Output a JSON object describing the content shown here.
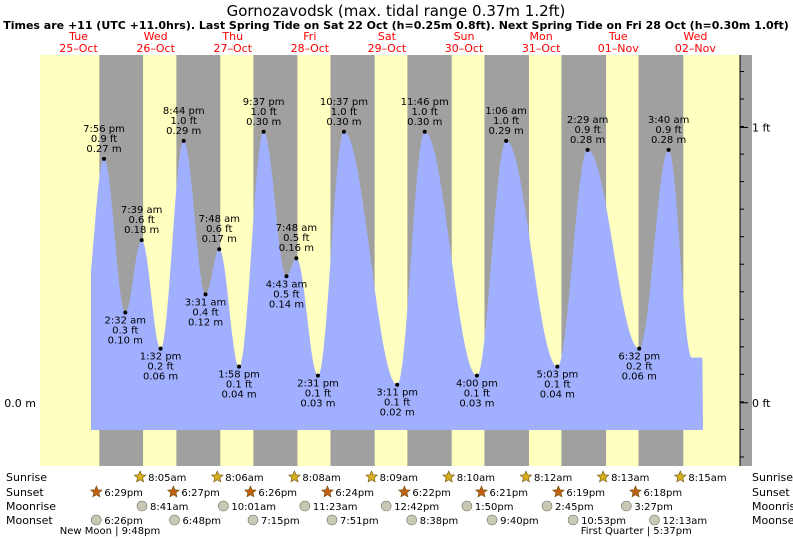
{
  "title": "Gornozavodsk (max. tidal range 0.37m 1.2ft)",
  "subtitle": "Times are +11 (UTC +11.0hrs). Last Spring Tide on Sat 22 Oct (h=0.25m 0.8ft). Next Spring Tide on Fri 28 Oct (h=0.30m 1.0ft)",
  "colors": {
    "day": "#ffffc0",
    "night": "#a0a0a0",
    "water": "#a0b0ff",
    "day_label": "#ff0000",
    "sun_star": "#d4b020",
    "set_star": "#c06010",
    "moon_disc": "#c8c8b4"
  },
  "chart_data": {
    "type": "area",
    "days": [
      {
        "dow": "Tue",
        "date": "25–Oct"
      },
      {
        "dow": "Wed",
        "date": "26–Oct"
      },
      {
        "dow": "Thu",
        "date": "27–Oct"
      },
      {
        "dow": "Fri",
        "date": "28–Oct"
      },
      {
        "dow": "Sat",
        "date": "29–Oct"
      },
      {
        "dow": "Sun",
        "date": "30–Oct"
      },
      {
        "dow": "Mon",
        "date": "31–Oct"
      },
      {
        "dow": "Tue",
        "date": "01–Nov"
      },
      {
        "dow": "Wed",
        "date": "02–Nov"
      }
    ],
    "left_axis": {
      "label": "0.0 m",
      "value_m": 0.0
    },
    "right_axis": [
      {
        "label": "1 ft",
        "value_ft": 1.0
      },
      {
        "label": "0 ft",
        "value_ft": 0.0
      }
    ],
    "ylim_m": [
      -0.07,
      0.385
    ],
    "tides": [
      {
        "time": "7:56 pm",
        "ft": "0.9 ft",
        "m": "0.27 m",
        "t": 0.83,
        "h": 0.27,
        "type": "high"
      },
      {
        "time": "2:32 am",
        "ft": "0.3 ft",
        "m": "0.10 m",
        "t": 1.106,
        "h": 0.1,
        "type": "low"
      },
      {
        "time": "7:39 am",
        "ft": "0.6 ft",
        "m": "0.18 m",
        "t": 1.319,
        "h": 0.18,
        "type": "high"
      },
      {
        "time": "1:32 pm",
        "ft": "0.2 ft",
        "m": "0.06 m",
        "t": 1.564,
        "h": 0.06,
        "type": "low"
      },
      {
        "time": "8:44 pm",
        "ft": "1.0 ft",
        "m": "0.29 m",
        "t": 1.864,
        "h": 0.29,
        "type": "high"
      },
      {
        "time": "3:31 am",
        "ft": "0.4 ft",
        "m": "0.12 m",
        "t": 2.147,
        "h": 0.12,
        "type": "low"
      },
      {
        "time": "7:48 am",
        "ft": "0.6 ft",
        "m": "0.17 m",
        "t": 2.325,
        "h": 0.17,
        "type": "high"
      },
      {
        "time": "1:58 pm",
        "ft": "0.1 ft",
        "m": "0.04 m",
        "t": 2.582,
        "h": 0.04,
        "type": "low"
      },
      {
        "time": "9:37 pm",
        "ft": "1.0 ft",
        "m": "0.30 m",
        "t": 2.901,
        "h": 0.3,
        "type": "high"
      },
      {
        "time": "4:43 am",
        "ft": "0.5 ft",
        "m": "0.14 m",
        "t": 3.197,
        "h": 0.14,
        "type": "low"
      },
      {
        "time": "7:48 am",
        "ft": "0.5 ft",
        "m": "0.16 m",
        "t": 3.325,
        "h": 0.16,
        "type": "high"
      },
      {
        "time": "2:31 pm",
        "ft": "0.1 ft",
        "m": "0.03 m",
        "t": 3.605,
        "h": 0.03,
        "type": "low"
      },
      {
        "time": "10:37 pm",
        "ft": "1.0 ft",
        "m": "0.30 m",
        "t": 3.942,
        "h": 0.3,
        "type": "high"
      },
      {
        "time": "3:11 pm",
        "ft": "0.1 ft",
        "m": "0.02 m",
        "t": 4.633,
        "h": 0.02,
        "type": "low"
      },
      {
        "time": "11:46 pm",
        "ft": "1.0 ft",
        "m": "0.30 m",
        "t": 4.99,
        "h": 0.3,
        "type": "high"
      },
      {
        "time": "4:00 pm",
        "ft": "0.1 ft",
        "m": "0.03 m",
        "t": 5.667,
        "h": 0.03,
        "type": "low"
      },
      {
        "time": "1:06 am",
        "ft": "1.0 ft",
        "m": "0.29 m",
        "t": 6.046,
        "h": 0.29,
        "type": "high"
      },
      {
        "time": "5:03 pm",
        "ft": "0.1 ft",
        "m": "0.04 m",
        "t": 6.71,
        "h": 0.04,
        "type": "low"
      },
      {
        "time": "2:29 am",
        "ft": "0.9 ft",
        "m": "0.28 m",
        "t": 7.103,
        "h": 0.28,
        "type": "high"
      },
      {
        "time": "6:32 pm",
        "ft": "0.2 ft",
        "m": "0.06 m",
        "t": 7.772,
        "h": 0.06,
        "type": "low"
      },
      {
        "time": "3:40 am",
        "ft": "0.9 ft",
        "m": "0.28 m",
        "t": 8.153,
        "h": 0.28,
        "type": "high"
      }
    ],
    "rows": {
      "sunrise": "Sunrise",
      "sunset": "Sunset",
      "moonrise": "Moonrise",
      "moonset": "Moonset"
    },
    "sunrise": [
      {
        "time": "8:05am",
        "t": 1.337
      },
      {
        "time": "8:06am",
        "t": 2.338
      },
      {
        "time": "8:08am",
        "t": 3.339
      },
      {
        "time": "8:09am",
        "t": 4.34
      },
      {
        "time": "8:10am",
        "t": 5.34
      },
      {
        "time": "8:12am",
        "t": 6.342
      },
      {
        "time": "8:13am",
        "t": 7.342
      },
      {
        "time": "8:15am",
        "t": 8.344
      }
    ],
    "sunset": [
      {
        "time": "6:29pm",
        "t": 0.77
      },
      {
        "time": "6:27pm",
        "t": 1.769
      },
      {
        "time": "6:26pm",
        "t": 2.768
      },
      {
        "time": "6:24pm",
        "t": 3.767
      },
      {
        "time": "6:22pm",
        "t": 4.765
      },
      {
        "time": "6:21pm",
        "t": 5.765
      },
      {
        "time": "6:19pm",
        "t": 6.763
      },
      {
        "time": "6:18pm",
        "t": 7.763
      }
    ],
    "moonrise": [
      {
        "time": "8:41am",
        "t": 1.362
      },
      {
        "time": "10:01am",
        "t": 2.417
      },
      {
        "time": "11:23am",
        "t": 3.474
      },
      {
        "time": "12:42pm",
        "t": 4.529
      },
      {
        "time": "1:50pm",
        "t": 5.576
      },
      {
        "time": "2:45pm",
        "t": 6.615
      },
      {
        "time": "3:27pm",
        "t": 7.644
      }
    ],
    "moonset": [
      {
        "time": "6:26pm",
        "t": 0.768
      },
      {
        "time": "6:48pm",
        "t": 1.783
      },
      {
        "time": "7:15pm",
        "t": 2.802
      },
      {
        "time": "7:51pm",
        "t": 3.827
      },
      {
        "time": "8:38pm",
        "t": 4.86
      },
      {
        "time": "9:40pm",
        "t": 5.903
      },
      {
        "time": "10:53pm",
        "t": 6.953
      },
      {
        "time": "12:13am",
        "t": 8.009
      }
    ],
    "moon_phases": [
      {
        "label": "New Moon | 9:48pm",
        "t": 0.908
      },
      {
        "label": "First Quarter | 5:37pm",
        "t": 7.734
      }
    ]
  }
}
